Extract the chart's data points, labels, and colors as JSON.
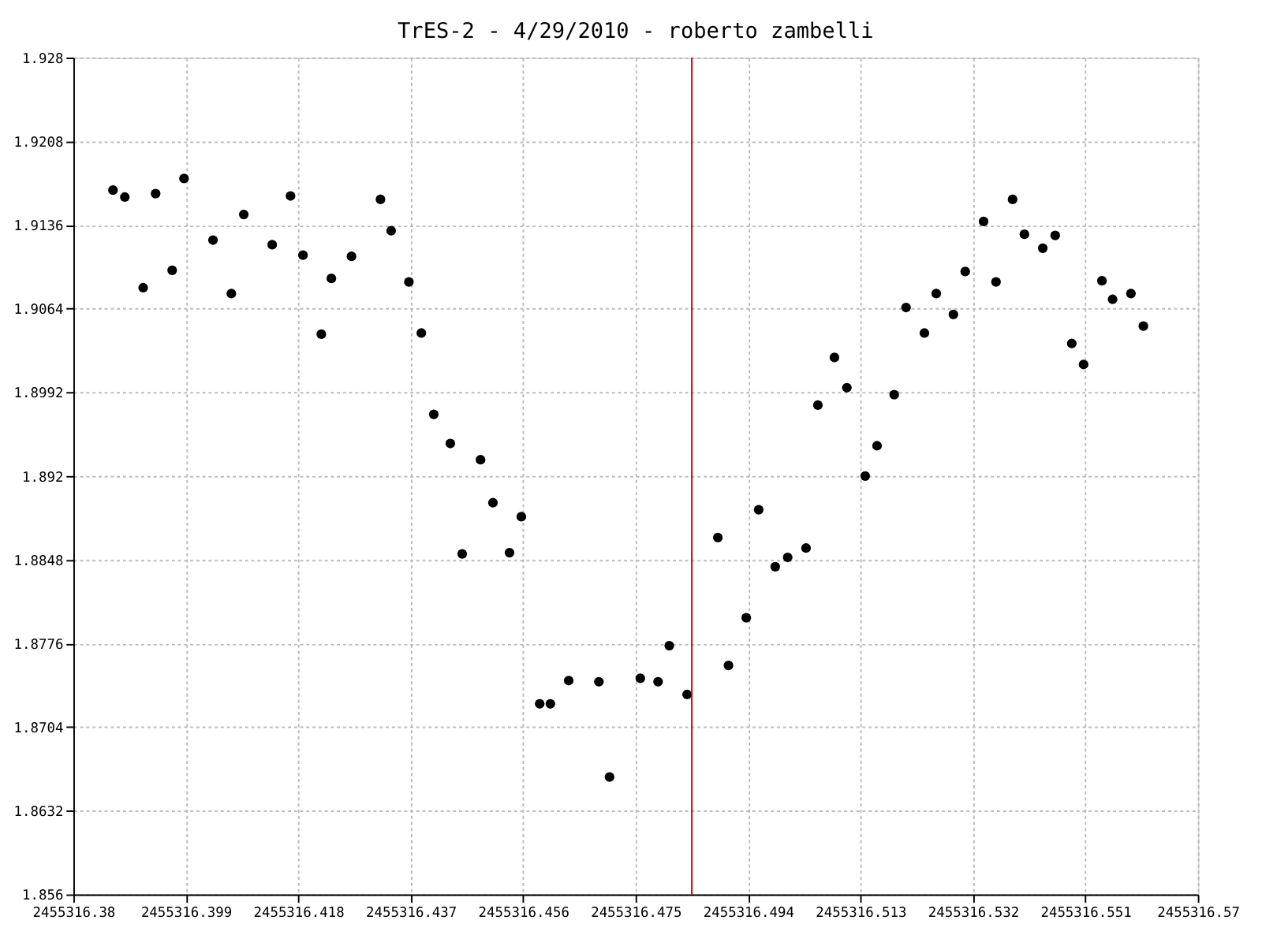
{
  "chart_data": {
    "type": "scatter",
    "title": "TrES-2 - 4/29/2010 - roberto zambelli",
    "x": [
      2455316.3867,
      2455316.3887,
      2455316.3918,
      2455316.3939,
      2455316.3967,
      2455316.3987,
      2455316.4036,
      2455316.4067,
      2455316.4088,
      2455316.4136,
      2455316.4167,
      2455316.4188,
      2455316.4219,
      2455316.4236,
      2455316.427,
      2455316.4319,
      2455316.4337,
      2455316.4367,
      2455316.4388,
      2455316.4409,
      2455316.4437,
      2455316.4457,
      2455316.4488,
      2455316.4509,
      2455316.4537,
      2455316.4557,
      2455316.4588,
      2455316.4606,
      2455316.4637,
      2455316.4688,
      2455316.4706,
      2455316.4758,
      2455316.4788,
      2455316.4807,
      2455316.4837,
      2455316.4889,
      2455316.4907,
      2455316.4937,
      2455316.4958,
      2455316.4986,
      2455316.5007,
      2455316.5038,
      2455316.5058,
      2455316.5086,
      2455316.5107,
      2455316.5138,
      2455316.5158,
      2455316.5187,
      2455316.5207,
      2455316.5238,
      2455316.5258,
      2455316.5287,
      2455316.5307,
      2455316.5338,
      2455316.5359,
      2455316.5387,
      2455316.5407,
      2455316.5438,
      2455316.5459,
      2455316.5487,
      2455316.5507,
      2455316.5538,
      2455316.5556,
      2455316.5587,
      2455316.5608
    ],
    "series": [
      {
        "color": "#000000",
        "values": [
          1.9166,
          1.916,
          1.9082,
          1.9163,
          1.9097,
          1.9176,
          1.9123,
          1.9077,
          1.9145,
          1.9119,
          1.9161,
          1.911,
          1.9042,
          1.909,
          1.9109,
          1.9158,
          1.9131,
          1.9087,
          1.9043,
          1.8973,
          1.8948,
          1.8853,
          1.8934,
          1.8897,
          1.8854,
          1.8885,
          1.8724,
          1.8724,
          1.8744,
          1.8743,
          1.8661,
          1.8746,
          1.8743,
          1.8774,
          1.8732,
          1.8867,
          1.8757,
          1.8798,
          1.8891,
          1.8842,
          1.885,
          1.8858,
          1.8981,
          1.9022,
          1.8996,
          1.892,
          1.8946,
          1.899,
          1.9065,
          1.9043,
          1.9077,
          1.9059,
          1.9096,
          1.9139,
          1.9087,
          1.9158,
          1.9128,
          1.9116,
          1.9127,
          1.9034,
          1.9016,
          1.9088,
          1.9072,
          1.9077,
          1.9049
        ]
      }
    ],
    "xlim": [
      2455316.38,
      2455316.57
    ],
    "xticks": [
      2455316.38,
      2455316.399,
      2455316.418,
      2455316.437,
      2455316.456,
      2455316.475,
      2455316.494,
      2455316.513,
      2455316.532,
      2455316.551,
      2455316.57
    ],
    "ylim": [
      1.856,
      1.928
    ],
    "yticks": [
      1.856,
      1.8632,
      1.8704,
      1.8776,
      1.8848,
      1.892,
      1.8992,
      1.9064,
      1.9136,
      1.9208,
      1.928
    ],
    "ref_lines": [
      {
        "axis": "x",
        "value": 2455316.4845,
        "color": "#cc0000"
      }
    ],
    "grid": true,
    "marker": "circle"
  }
}
